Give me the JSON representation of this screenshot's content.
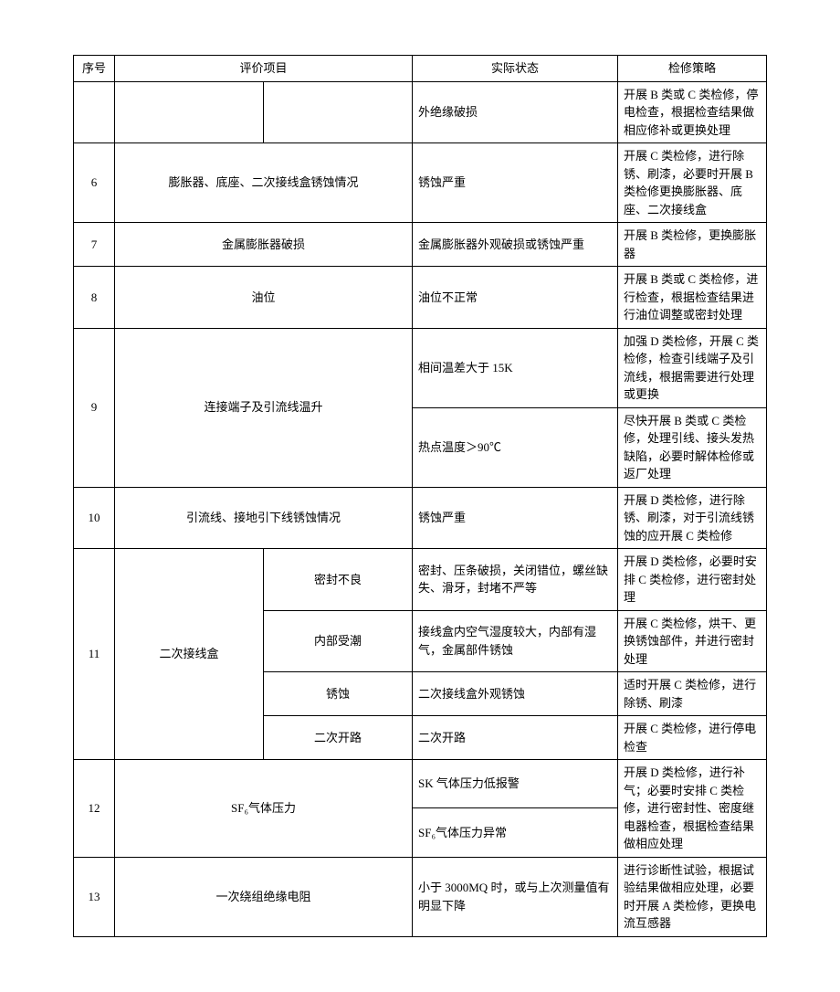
{
  "table": {
    "headers": {
      "seq": "序号",
      "eval": "评价项目",
      "state": "实际状态",
      "strategy": "检修策略"
    },
    "rows": [
      {
        "seq": "",
        "evalA": "",
        "evalB": "",
        "state": "外绝缘破损",
        "strategy": "开展 B 类或 C 类检修，停电检查，根据检查结果做相应修补或更换处理"
      },
      {
        "seq": "6",
        "eval": "膨胀器、底座、二次接线盒锈蚀情况",
        "state": "锈蚀严重",
        "strategy": "开展 C 类检修，进行除锈、刷漆，必要时开展 B 类检修更换膨胀器、底座、二次接线盒"
      },
      {
        "seq": "7",
        "eval": "金属膨胀器破损",
        "state": "金属膨胀器外观破损或锈蚀严重",
        "strategy": "开展 B 类检修，更换膨胀器"
      },
      {
        "seq": "8",
        "eval": "油位",
        "state": "油位不正常",
        "strategy": "开展 B 类或 C 类检修，进行检查，根据检查结果进行油位调整或密封处理"
      },
      {
        "seq": "9",
        "eval": "连接端子及引流线温升",
        "sub": [
          {
            "state": "相间温差大于 15K",
            "strategy": "加强 D 类检修，开展 C 类检修，检查引线端子及引流线，根据需要进行处理或更换"
          },
          {
            "state": "热点温度＞90℃",
            "strategy": "尽快开展 B 类或 C 类检修，处理引线、接头发热缺陷，必要时解体检修或返厂处理"
          }
        ]
      },
      {
        "seq": "10",
        "eval": "引流线、接地引下线锈蚀情况",
        "state": "锈蚀严重",
        "strategy": "开展 D 类检修，进行除锈、刷漆，对于引流线锈蚀的应开展 C 类检修"
      },
      {
        "seq": "11",
        "evalA": "二次接线盒",
        "sub": [
          {
            "evalB": "密封不良",
            "state": "密封、压条破损，关闭错位，螺丝缺失、滑牙，封堵不严等",
            "strategy": "开展 D 类检修，必要时安排 C 类检修，进行密封处理"
          },
          {
            "evalB": "内部受潮",
            "state": "接线盒内空气湿度较大，内部有湿气，金属部件锈蚀",
            "strategy": "开展 C 类检修，烘干、更换锈蚀部件，并进行密封处理"
          },
          {
            "evalB": "锈蚀",
            "state": "二次接线盒外观锈蚀",
            "strategy": "适时开展 C 类检修，进行除锈、刷漆"
          },
          {
            "evalB": "二次开路",
            "state": "二次开路",
            "strategy": "开展 C 类检修，进行停电检查"
          }
        ]
      },
      {
        "seq": "12",
        "eval": "SF₆气体压力",
        "sub": [
          {
            "state": "SK 气体压力低报警",
            "strategy": "开展 D 类检修，进行补气；必要时安排 C 类检修，进行密封性、密度继电器检查，根据检查结果做相应处理"
          },
          {
            "state": "SF₆气体压力异常",
            "strategy": ""
          }
        ]
      },
      {
        "seq": "13",
        "eval": "一次绕组绝缘电阻",
        "state": "小于 3000MQ 时，或与上次测量值有明显下降",
        "strategy": "进行诊断性试验，根据试验结果做相应处理，必要时开展 A 类检修，更换电流互感器"
      }
    ]
  }
}
